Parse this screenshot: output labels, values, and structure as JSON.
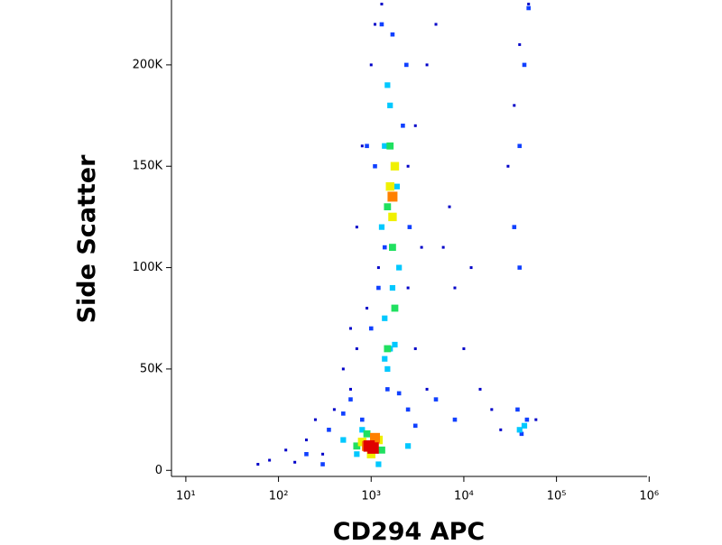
{
  "chart_data": {
    "type": "scatter",
    "x_label": "CD294 APC",
    "y_label": "Side Scatter",
    "x_scale": "log",
    "xlim": [
      7,
      950000
    ],
    "xticks": [
      {
        "value": 10,
        "label": "10¹"
      },
      {
        "value": 100,
        "label": "10²"
      },
      {
        "value": 1000,
        "label": "10³"
      },
      {
        "value": 10000,
        "label": "10⁴"
      },
      {
        "value": 100000,
        "label": "10⁵"
      },
      {
        "value": 1000000,
        "label": "10⁶"
      }
    ],
    "ylim": [
      -3000,
      232000
    ],
    "yticks": [
      0,
      {
        "value": 50000,
        "label": "50K"
      },
      {
        "value": 100000,
        "label": "100K"
      },
      {
        "value": 150000,
        "label": "150K"
      },
      {
        "value": 200000,
        "label": "200K"
      }
    ],
    "series": [
      {
        "color": "#0000c8",
        "x": [
          60,
          80,
          120,
          150,
          200,
          250,
          300,
          400,
          600,
          700,
          900,
          1200,
          2500,
          3000,
          4000,
          5000,
          6000,
          8000,
          10000,
          15000,
          20000,
          25000,
          30000,
          35000,
          40000,
          50000,
          60000,
          700,
          800,
          1000,
          1100,
          1300,
          2500,
          3000,
          4000,
          500,
          600,
          3500,
          7000,
          12000
        ],
        "values": [
          3000,
          5000,
          10000,
          4000,
          15000,
          25000,
          8000,
          30000,
          40000,
          60000,
          80000,
          100000,
          150000,
          170000,
          200000,
          220000,
          110000,
          90000,
          60000,
          40000,
          30000,
          20000,
          150000,
          180000,
          210000,
          230000,
          25000,
          120000,
          160000,
          200000,
          220000,
          230000,
          90000,
          60000,
          40000,
          50000,
          70000,
          110000,
          130000,
          100000
        ]
      },
      {
        "color": "#1040ff",
        "x": [
          200,
          300,
          350,
          500,
          600,
          800,
          1500,
          2000,
          2500,
          3000,
          5000,
          8000,
          1000,
          1200,
          1400,
          2200,
          2400,
          1300,
          1700,
          2600,
          900,
          1100,
          35000,
          40000,
          45000,
          50000,
          38000,
          42000,
          48000,
          40000
        ],
        "values": [
          8000,
          3000,
          20000,
          28000,
          35000,
          25000,
          40000,
          38000,
          30000,
          22000,
          35000,
          25000,
          70000,
          90000,
          110000,
          170000,
          200000,
          220000,
          215000,
          120000,
          160000,
          150000,
          120000,
          160000,
          200000,
          228000,
          30000,
          18000,
          25000,
          100000
        ]
      },
      {
        "color": "#00c8ff",
        "x": [
          500,
          700,
          800,
          1400,
          1500,
          1600,
          1800,
          1300,
          1400,
          1600,
          1900,
          1500,
          1700,
          1400,
          2000,
          45000,
          40000,
          1200,
          2500
        ],
        "values": [
          15000,
          8000,
          20000,
          55000,
          50000,
          60000,
          62000,
          120000,
          160000,
          180000,
          140000,
          190000,
          90000,
          75000,
          100000,
          22000,
          20000,
          3000,
          12000
        ]
      },
      {
        "color": "#20e060",
        "x": [
          700,
          900,
          1300,
          1500,
          1600,
          1700,
          1800,
          1500,
          1800
        ],
        "values": [
          12000,
          18000,
          10000,
          130000,
          160000,
          110000,
          150000,
          60000,
          80000
        ]
      },
      {
        "color": "#f0f000",
        "x": [
          800,
          1000,
          1200,
          1600,
          1700,
          1800
        ],
        "values": [
          14000,
          8000,
          15000,
          140000,
          125000,
          150000
        ]
      },
      {
        "color": "#ff8000",
        "x": [
          900,
          1100,
          1700
        ],
        "values": [
          12000,
          16000,
          135000
        ]
      },
      {
        "color": "#e00000",
        "x": [
          950,
          1050
        ],
        "values": [
          12000,
          11000
        ]
      }
    ]
  }
}
